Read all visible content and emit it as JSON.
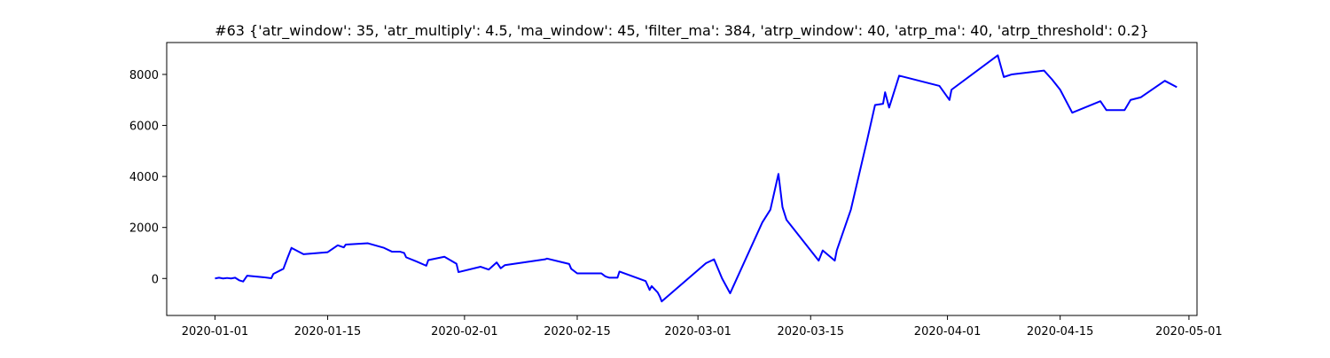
{
  "chart_data": {
    "type": "line",
    "title": "#63 {'atr_window': 35, 'atr_multiply': 4.5, 'ma_window': 45, 'filter_ma': 384, 'atrp_window': 40, 'atrp_ma': 40, 'atrp_threshold': 0.2}",
    "xlabel": "",
    "ylabel": "",
    "x_is_date": true,
    "xlim": [
      "2019-12-26",
      "2020-05-02"
    ],
    "ylim": [
      -1450,
      9250
    ],
    "grid": false,
    "legend": "none",
    "x_ticks": [
      "2020-01-01",
      "2020-01-15",
      "2020-02-01",
      "2020-02-15",
      "2020-03-01",
      "2020-03-15",
      "2020-04-01",
      "2020-04-15",
      "2020-05-01"
    ],
    "y_ticks": [
      0,
      2000,
      4000,
      6000,
      8000
    ],
    "series": [
      {
        "color": "#0000ff",
        "points": [
          [
            "2020-01-01",
            0
          ],
          [
            "2020-01-01T12:00",
            30
          ],
          [
            "2020-01-02",
            0
          ],
          [
            "2020-01-02T12:00",
            20
          ],
          [
            "2020-01-03",
            0
          ],
          [
            "2020-01-03T12:00",
            30
          ],
          [
            "2020-01-04",
            -70
          ],
          [
            "2020-01-04T12:00",
            -120
          ],
          [
            "2020-01-05",
            110
          ],
          [
            "2020-01-07",
            50
          ],
          [
            "2020-01-08",
            10
          ],
          [
            "2020-01-08T06:00",
            180
          ],
          [
            "2020-01-09T12:00",
            380
          ],
          [
            "2020-01-10",
            800
          ],
          [
            "2020-01-10T12:00",
            1200
          ],
          [
            "2020-01-12",
            950
          ],
          [
            "2020-01-15",
            1030
          ],
          [
            "2020-01-16T06:00",
            1300
          ],
          [
            "2020-01-17",
            1220
          ],
          [
            "2020-01-17T06:00",
            1330
          ],
          [
            "2020-01-20",
            1380
          ],
          [
            "2020-01-22",
            1200
          ],
          [
            "2020-01-23",
            1050
          ],
          [
            "2020-01-24",
            1050
          ],
          [
            "2020-01-24T12:00",
            1000
          ],
          [
            "2020-01-24T18:00",
            830
          ],
          [
            "2020-01-26",
            670
          ],
          [
            "2020-01-27T06:00",
            500
          ],
          [
            "2020-01-27T12:00",
            720
          ],
          [
            "2020-01-29T12:00",
            850
          ],
          [
            "2020-01-31",
            580
          ],
          [
            "2020-01-31T06:00",
            250
          ],
          [
            "2020-02-03",
            460
          ],
          [
            "2020-02-04",
            350
          ],
          [
            "2020-02-05",
            630
          ],
          [
            "2020-02-05T12:00",
            400
          ],
          [
            "2020-02-06",
            520
          ],
          [
            "2020-02-11",
            750
          ],
          [
            "2020-02-11T06:00",
            780
          ],
          [
            "2020-02-14",
            570
          ],
          [
            "2020-02-14T06:00",
            380
          ],
          [
            "2020-02-15",
            200
          ],
          [
            "2020-02-18",
            200
          ],
          [
            "2020-02-18T12:00",
            80
          ],
          [
            "2020-02-19",
            30
          ],
          [
            "2020-02-20",
            30
          ],
          [
            "2020-02-20T06:00",
            270
          ],
          [
            "2020-02-23T12:00",
            -100
          ],
          [
            "2020-02-24",
            -450
          ],
          [
            "2020-02-24T06:00",
            -300
          ],
          [
            "2020-02-25",
            -550
          ],
          [
            "2020-02-25T06:00",
            -700
          ],
          [
            "2020-02-25T12:00",
            -900
          ],
          [
            "2020-03-02",
            600
          ],
          [
            "2020-03-03",
            750
          ],
          [
            "2020-03-04",
            0
          ],
          [
            "2020-03-05",
            -580
          ],
          [
            "2020-03-09",
            2200
          ],
          [
            "2020-03-10",
            2700
          ],
          [
            "2020-03-11",
            4100
          ],
          [
            "2020-03-11T12:00",
            2800
          ],
          [
            "2020-03-12",
            2300
          ],
          [
            "2020-03-16",
            700
          ],
          [
            "2020-03-16T12:00",
            1100
          ],
          [
            "2020-03-18",
            700
          ],
          [
            "2020-03-18T06:00",
            1100
          ],
          [
            "2020-03-20",
            2700
          ],
          [
            "2020-03-22",
            5400
          ],
          [
            "2020-03-23",
            6800
          ],
          [
            "2020-03-24",
            6850
          ],
          [
            "2020-03-24T06:00",
            7300
          ],
          [
            "2020-03-24T18:00",
            6700
          ],
          [
            "2020-03-26",
            7950
          ],
          [
            "2020-03-31",
            7550
          ],
          [
            "2020-04-01T06:00",
            7000
          ],
          [
            "2020-04-01T12:00",
            7400
          ],
          [
            "2020-04-07T06:00",
            8750
          ],
          [
            "2020-04-08",
            7900
          ],
          [
            "2020-04-09",
            8000
          ],
          [
            "2020-04-13",
            8150
          ],
          [
            "2020-04-14",
            7800
          ],
          [
            "2020-04-15",
            7400
          ],
          [
            "2020-04-16T12:00",
            6500
          ],
          [
            "2020-04-20",
            6950
          ],
          [
            "2020-04-20T18:00",
            6600
          ],
          [
            "2020-04-23",
            6600
          ],
          [
            "2020-04-23T18:00",
            7000
          ],
          [
            "2020-04-25",
            7100
          ],
          [
            "2020-04-28",
            7750
          ],
          [
            "2020-04-29T12:00",
            7500
          ]
        ]
      }
    ]
  }
}
